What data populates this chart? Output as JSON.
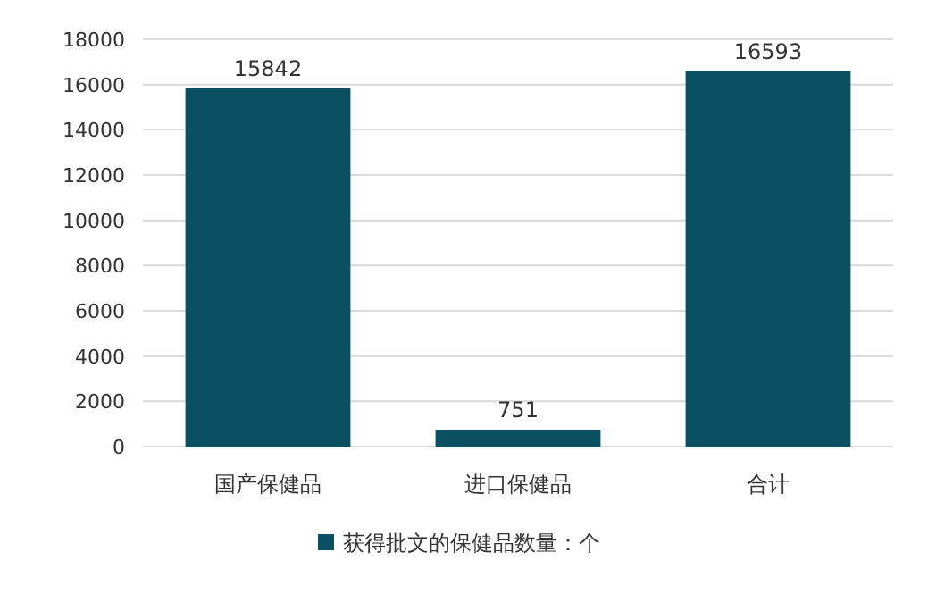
{
  "chart_data": {
    "type": "bar",
    "categories": [
      "国产保健品",
      "进口保健品",
      "合计"
    ],
    "series": [
      {
        "name": "获得批文的保健品数量：个",
        "color": "#0b4f63",
        "values": [
          15842,
          751,
          16593
        ]
      }
    ],
    "ylim": [
      0,
      18000
    ],
    "yticks": [
      0,
      2000,
      4000,
      6000,
      8000,
      10000,
      12000,
      14000,
      16000,
      18000
    ],
    "grid": "y",
    "legend": "bottom",
    "data_labels": true
  }
}
